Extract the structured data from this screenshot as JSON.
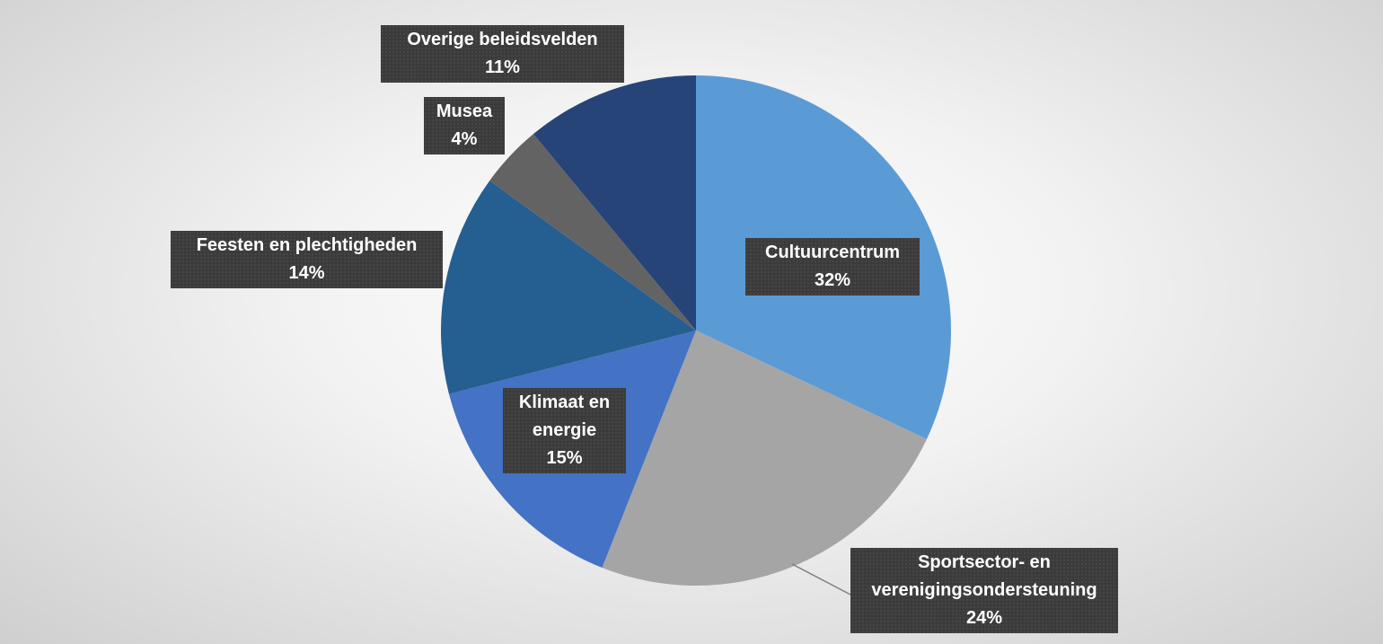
{
  "chart_data": {
    "type": "pie",
    "categories": [
      "Cultuurcentrum",
      "Sportsector- en verenigingsondersteuning",
      "Klimaat en energie",
      "Feesten en plechtigheden",
      "Musea",
      "Overige beleidsvelden"
    ],
    "values": [
      32,
      24,
      15,
      14,
      4,
      11
    ],
    "value_labels": [
      "32%",
      "24%",
      "15%",
      "14%",
      "4%",
      "11%"
    ],
    "colors": [
      "#5b9bd5",
      "#a5a5a5",
      "#4472c4",
      "#255e91",
      "#636363",
      "#264478"
    ]
  }
}
